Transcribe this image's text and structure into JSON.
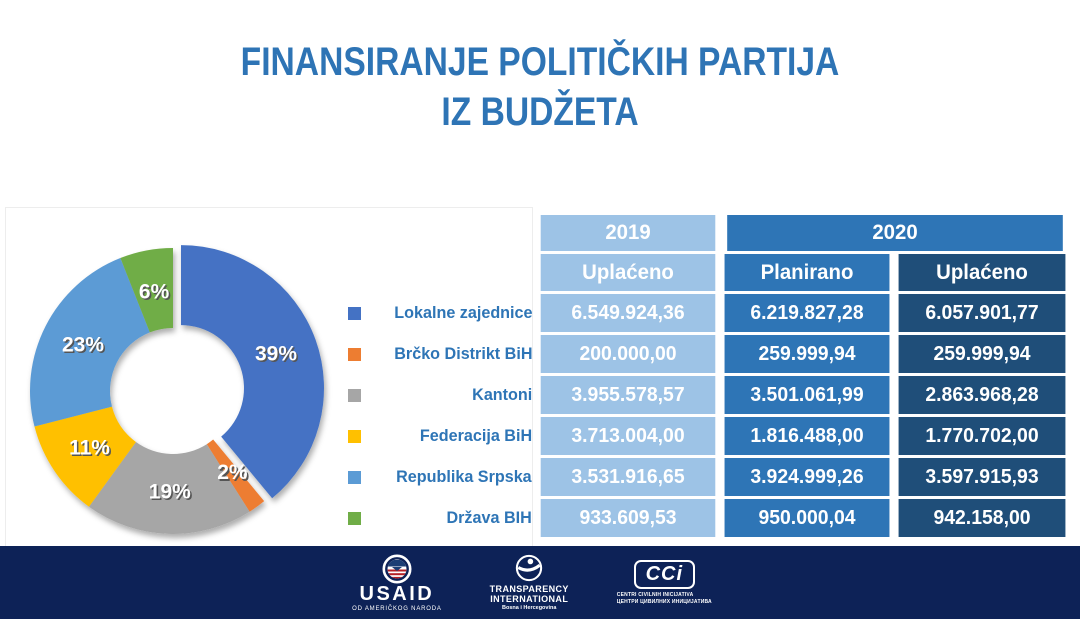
{
  "title": {
    "line1": "FINANSIRANJE POLITIČKIH PARTIJA",
    "line2": "IZ BUDŽETA"
  },
  "colors": {
    "title_blue": "#2E74B5",
    "col_2019": "#9DC3E6",
    "col_plan": "#2E75B6",
    "col_paid": "#1F4E79",
    "footer_navy": "#0D2257",
    "legend_label_blue": "#2E75B6"
  },
  "chart_data": {
    "type": "pie",
    "subtype": "donut",
    "title": "FINANSIRANJE POLITIČKIH PARTIJA IZ BUDŽETA",
    "categories": [
      "Lokalne zajednice",
      "Brčko Distrikt BiH",
      "Kantoni",
      "Federacija BiH",
      "Republika Srpska",
      "Država BIH"
    ],
    "percentages": [
      39,
      2,
      19,
      11,
      23,
      6
    ],
    "labels": [
      "39%",
      "2%",
      "19%",
      "11%",
      "23%",
      "6%"
    ],
    "colors": [
      "#4472C4",
      "#ED7D31",
      "#A6A6A6",
      "#FFC000",
      "#5B9BD5",
      "#70AD47"
    ],
    "exploded_index": 0,
    "start_angle_deg": 0,
    "direction": "clockwise",
    "legend_position": "right",
    "table_series": [
      {
        "name": "2019 Uplaćeno",
        "values": [
          "6.549.924,36",
          "200.000,00",
          "3.955.578,57",
          "3.713.004,00",
          "3.531.916,65",
          "933.609,53"
        ]
      },
      {
        "name": "2020 Planirano",
        "values": [
          "6.219.827,28",
          "259.999,94",
          "3.501.061,99",
          "1.816.488,00",
          "3.924.999,26",
          "950.000,04"
        ]
      },
      {
        "name": "2020 Uplaćeno",
        "values": [
          "6.057.901,77",
          "259.999,94",
          "2.863.968,28",
          "1.770.702,00",
          "3.597.915,93",
          "942.158,00"
        ]
      }
    ]
  },
  "table": {
    "year_headers": [
      "2019",
      "2020"
    ],
    "sub_headers": [
      "Uplaćeno",
      "Planirano",
      "Uplaćeno"
    ],
    "rows": [
      {
        "label": "Lokalne zajednice",
        "marker_color": "#4472C4",
        "values": [
          "6.549.924,36",
          "6.219.827,28",
          "6.057.901,77"
        ]
      },
      {
        "label": "Brčko Distrikt BiH",
        "marker_color": "#ED7D31",
        "values": [
          "200.000,00",
          "259.999,94",
          "259.999,94"
        ]
      },
      {
        "label": "Kantoni",
        "marker_color": "#A6A6A6",
        "values": [
          "3.955.578,57",
          "3.501.061,99",
          "2.863.968,28"
        ]
      },
      {
        "label": "Federacija BiH",
        "marker_color": "#FFC000",
        "values": [
          "3.713.004,00",
          "1.816.488,00",
          "1.770.702,00"
        ]
      },
      {
        "label": "Republika Srpska",
        "marker_color": "#5B9BD5",
        "values": [
          "3.531.916,65",
          "3.924.999,26",
          "3.597.915,93"
        ]
      },
      {
        "label": "Država BIH",
        "marker_color": "#70AD47",
        "values": [
          "933.609,53",
          "950.000,04",
          "942.158,00"
        ]
      }
    ]
  },
  "footer": {
    "usaid": {
      "name": "USAID",
      "tagline": "OD AMERIČKOG NARODA"
    },
    "transparency": {
      "line1": "TRANSPARENCY",
      "line2": "INTERNATIONAL",
      "line3": "Bosna i Hercegovina"
    },
    "cci": {
      "name": "CCi",
      "line1": "CENTRI CIVILNIH INICIJATIVA",
      "line2": "ЦЕНТРИ ЦИВИЛНИХ ИНИЦИЈАТИВА"
    }
  }
}
